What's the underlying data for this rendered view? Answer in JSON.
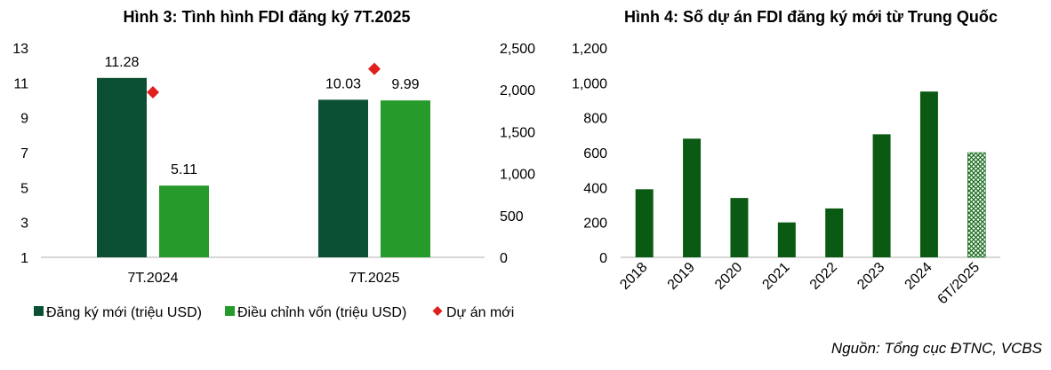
{
  "chart_data": [
    {
      "type": "bar",
      "title": "Hình 3: Tình hình FDI đăng ký 7T.2025",
      "categories": [
        "7T.2024",
        "7T.2025"
      ],
      "series": [
        {
          "name": "Đăng ký mới (triệu USD)",
          "axis": "left",
          "color": "#0b5033",
          "values": [
            11.28,
            10.03
          ],
          "labels": [
            "11.28",
            "10.03"
          ]
        },
        {
          "name": "Điều chỉnh vốn (triệu USD)",
          "axis": "left",
          "color": "#269a2a",
          "values": [
            5.11,
            9.99
          ],
          "labels": [
            "5.11",
            "9.99"
          ]
        },
        {
          "name": "Dự án mới",
          "axis": "right",
          "type": "scatter",
          "marker": "diamond",
          "color": "#e01e1e",
          "values": [
            1970,
            2250
          ]
        }
      ],
      "y_left": {
        "ylim": [
          1,
          13
        ],
        "ticks": [
          1,
          3,
          5,
          7,
          9,
          11,
          13
        ],
        "tick_labels": [
          "1",
          "3",
          "5",
          "7",
          "9",
          "11",
          "13"
        ]
      },
      "y_right": {
        "ylim": [
          0,
          2500
        ],
        "ticks": [
          0,
          500,
          1000,
          1500,
          2000,
          2500
        ],
        "tick_labels": [
          "0",
          "500",
          "1,000",
          "1,500",
          "2,000",
          "2,500"
        ]
      },
      "legend": "bottom",
      "grid": false
    },
    {
      "type": "bar",
      "title": "Hình 4: Số dự án FDI đăng ký mới từ Trung Quốc",
      "categories": [
        "2018",
        "2019",
        "2020",
        "2021",
        "2022",
        "2023",
        "2024",
        "6T/2025"
      ],
      "values": [
        390,
        680,
        340,
        200,
        280,
        705,
        950,
        600
      ],
      "color": "#0b5a14",
      "hatched_categories": [
        "6T/2025"
      ],
      "ylim": [
        0,
        1200
      ],
      "ticks": [
        0,
        200,
        400,
        600,
        800,
        1000,
        1200
      ],
      "tick_labels": [
        "0",
        "200",
        "400",
        "600",
        "800",
        "1,000",
        "1,200"
      ],
      "grid": false
    }
  ],
  "source": "Nguồn: Tổng cục ĐTNC, VCBS"
}
